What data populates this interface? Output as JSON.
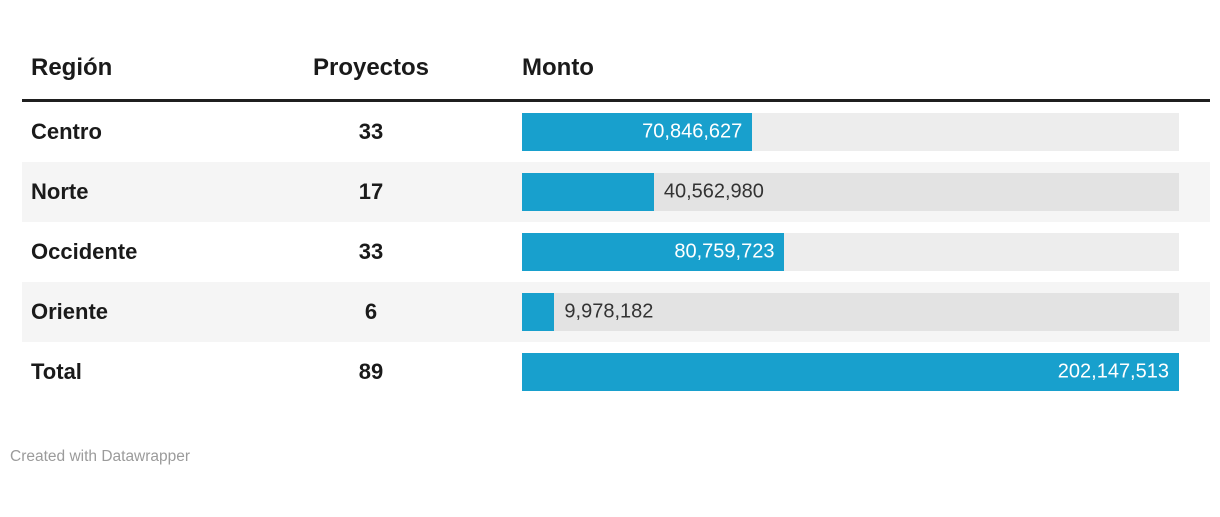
{
  "chart_data": {
    "type": "table",
    "title": "",
    "columns": [
      "Región",
      "Proyectos",
      "Monto"
    ],
    "bar_column": "Monto",
    "bar_axis_max": 202147513,
    "rows": [
      {
        "region": "Centro",
        "proyectos": "33",
        "monto_value": 70846627,
        "monto_label": "70,846,627",
        "value_label_position": "inside"
      },
      {
        "region": "Norte",
        "proyectos": "17",
        "monto_value": 40562980,
        "monto_label": "40,562,980",
        "value_label_position": "outside"
      },
      {
        "region": "Occidente",
        "proyectos": "33",
        "monto_value": 80759723,
        "monto_label": "80,759,723",
        "value_label_position": "inside"
      },
      {
        "region": "Oriente",
        "proyectos": "6",
        "monto_value": 9978182,
        "monto_label": "9,978,182",
        "value_label_position": "outside"
      },
      {
        "region": "Total",
        "proyectos": "89",
        "monto_value": 202147513,
        "monto_label": "202,147,513",
        "value_label_position": "inside"
      }
    ]
  },
  "styles": {
    "bar_color": "#18a0cd",
    "bar_track_color": "rgba(0,0,0,0.07)",
    "row_alt_background": "#f5f5f5",
    "header_rule_color": "#1f1f1f",
    "text_color": "#1a1a1a",
    "value_inside_color": "#ffffff",
    "value_outside_color": "#333333",
    "footer_color": "#9b9b9b"
  },
  "footer": {
    "attribution": "Created with Datawrapper"
  }
}
